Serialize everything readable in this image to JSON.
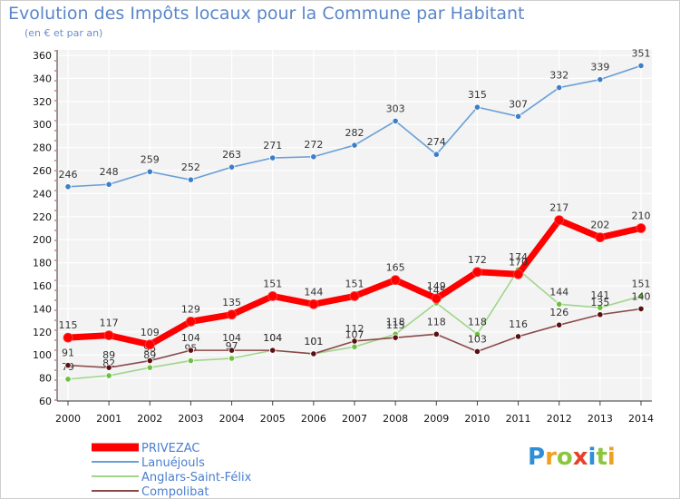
{
  "chart_data": {
    "type": "line",
    "title": "Evolution des Impôts locaux pour la Commune par Habitant",
    "subtitle": "(en € et par an)",
    "xlabel": "",
    "ylabel": "",
    "ylim": [
      60,
      360
    ],
    "yticks": [
      60,
      80,
      100,
      120,
      140,
      160,
      180,
      200,
      220,
      240,
      260,
      280,
      300,
      320,
      340,
      360
    ],
    "categories": [
      "2000",
      "2001",
      "2002",
      "2003",
      "2004",
      "2005",
      "2006",
      "2007",
      "2008",
      "2009",
      "2010",
      "2011",
      "2012",
      "2013",
      "2014"
    ],
    "legend_position": "bottom-left",
    "series": [
      {
        "name": "Lanuéjouls",
        "color": "#6a9fd6",
        "marker": "#3c7fc8",
        "values": [
          246,
          248,
          259,
          252,
          263,
          271,
          272,
          282,
          303,
          274,
          315,
          307,
          332,
          339,
          351
        ]
      },
      {
        "name": "Anglars-Saint-Félix",
        "color": "#9fd68a",
        "marker": "#6cc040",
        "values": [
          79,
          82,
          89,
          95,
          97,
          104,
          101,
          107,
          118,
          145,
          118,
          174,
          144,
          141,
          151
        ]
      },
      {
        "name": "Compolibat",
        "color": "#8a4a4a",
        "marker": "#5a1010",
        "values": [
          91,
          89,
          95,
          104,
          104,
          104,
          101,
          112,
          115,
          118,
          103,
          116,
          126,
          135,
          140
        ]
      },
      {
        "name": "PRIVEZAC",
        "color": "#ff0000",
        "marker": "#ff0000",
        "values": [
          115,
          117,
          109,
          129,
          135,
          151,
          144,
          151,
          165,
          149,
          172,
          170,
          217,
          202,
          210
        ]
      }
    ]
  },
  "legend": {
    "items": [
      {
        "name": "PRIVEZAC",
        "color": "#ff0000"
      },
      {
        "name": "Lanuéjouls",
        "color": "#6a9fd6"
      },
      {
        "name": "Anglars-Saint-Félix",
        "color": "#9fd68a"
      },
      {
        "name": "Compolibat",
        "color": "#8a4a4a"
      }
    ]
  },
  "logo": {
    "letters": [
      "P",
      "r",
      "o",
      "x",
      "i",
      "t",
      "i"
    ],
    "colors": [
      "#2c8fd8",
      "#f0a020",
      "#8cc63f",
      "#e8402a",
      "#2c8fd8",
      "#8cc63f",
      "#f0a020"
    ]
  }
}
